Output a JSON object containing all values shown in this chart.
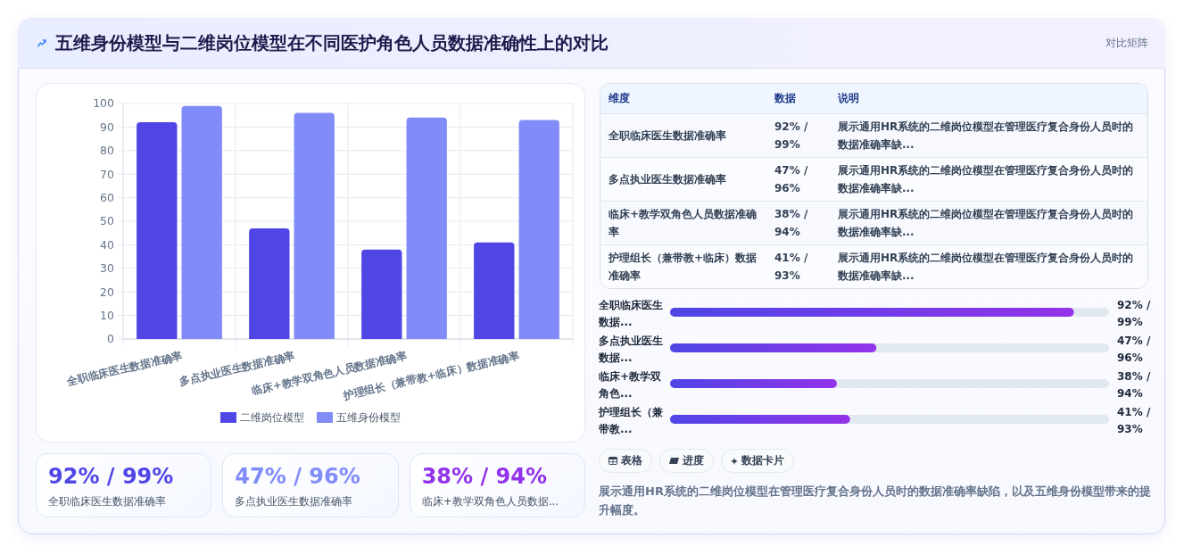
{
  "chart_data": [
    {
      "type": "other",
      "title": "五维身份模型与二维岗位模型在不同医护角色人员数据准确性上的对比",
      "subtitle": "对比矩阵"
    },
    {
      "type": "bar",
      "categories": [
        "全职临床医生数据准确率",
        "多点执业医生数据准确率",
        "临床+教学双角色人员数据准确率",
        "护理组长（兼带教+临床）数据准确率"
      ],
      "series": [
        {
          "name": "二维岗位模型",
          "color": "#4f46e5",
          "values": [
            92,
            47,
            38,
            41
          ]
        },
        {
          "name": "五维身份模型",
          "color": "#818cf8",
          "values": [
            99,
            96,
            94,
            93
          ]
        }
      ],
      "ylim": [
        0,
        100
      ],
      "yticks": [
        0,
        10,
        20,
        30,
        40,
        50,
        60,
        70,
        80,
        90,
        100
      ],
      "grid": true,
      "legend": "bottom"
    },
    {
      "type": "other",
      "categories": [
        "全职临床医生数据准确率",
        "多点执业医生数据准确率",
        "临床+教学双角色人员数据准确率",
        "护理组长（兼带教+临床）数据准确率"
      ],
      "value_labels": [
        "92% / 99%",
        "47% / 96%",
        "38% / 94%",
        "41% / 93%"
      ],
      "annotations": [
        "维度",
        "数据",
        "说明",
        "展示通用HR系统的二维岗位模型在管理医疗复合身份人员时的数据准确率缺...",
        "展示通用HR系统的二维岗位模型在管理医疗复合身份人员时的数据准确率缺...",
        "展示通用HR系统的二维岗位模型在管理医疗复合身份人员时的数据准确率缺...",
        "展示通用HR系统的二维岗位模型在管理医疗复合身份人员时的数据准确率缺..."
      ]
    },
    {
      "type": "bar",
      "orientation": "horizontal",
      "categories": [
        "全职临床医生数据...",
        "多点执业医生数据...",
        "临床+教学双角色...",
        "护理组长（兼带教..."
      ],
      "values": [
        92,
        47,
        38,
        41
      ],
      "value_labels": [
        "92% / 99%",
        "47% / 96%",
        "38% / 94%",
        "41% / 93%"
      ],
      "color": "#4f46e5",
      "xlim": [
        0,
        100
      ],
      "tick_labels": "y"
    },
    {
      "type": "other",
      "categories": [
        "全职临床医生数据准确率",
        "多点执业医生数据准确率",
        "临床+教学双角色人员数据..."
      ],
      "value_labels": [
        "92% / 99%",
        "47% / 96%",
        "38% / 94%"
      ]
    },
    {
      "type": "other",
      "annotations": [
        "表格",
        "进度",
        "数据卡片",
        "展示通用HR系统的二维岗位模型在管理医疗复合身份人员时的数据准确率缺陷，以及五维身份模型带来的提升幅度。"
      ]
    }
  ]
}
